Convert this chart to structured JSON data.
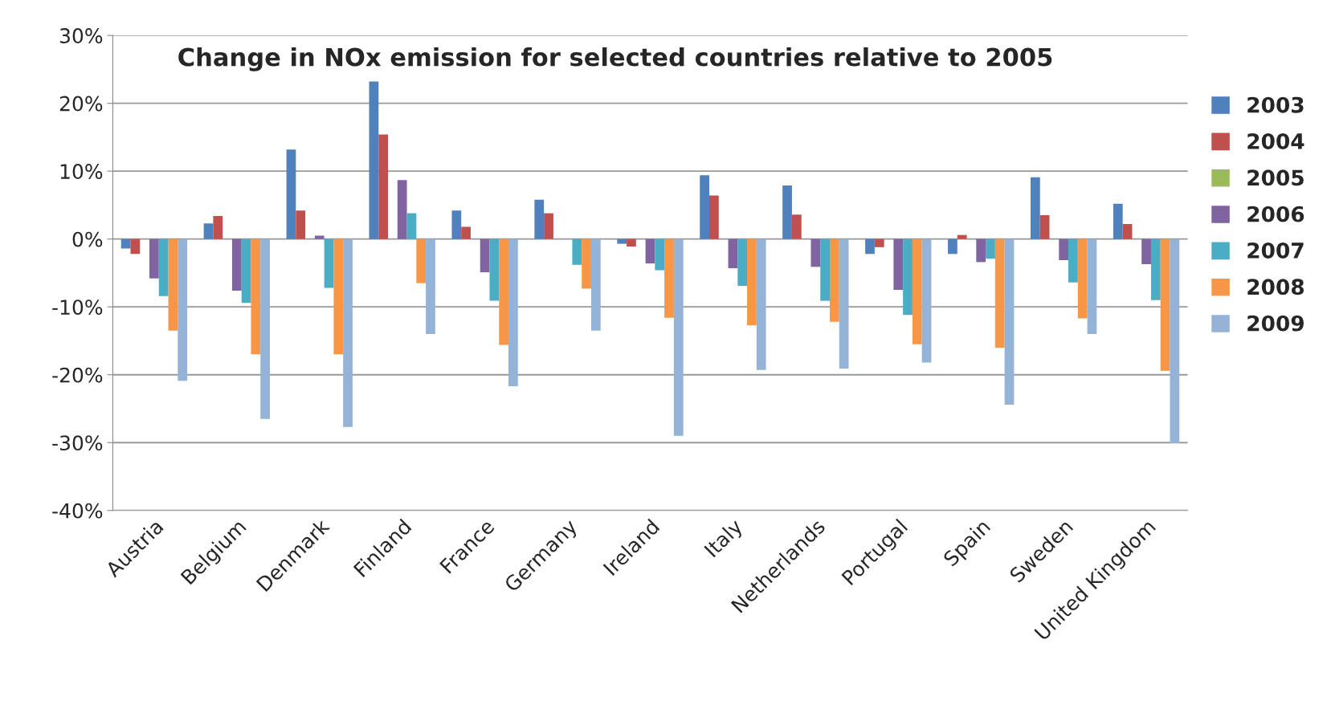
{
  "chart_data": {
    "type": "bar",
    "title": "Change in NOx emission for selected countries relative to 2005",
    "categories": [
      "Austria",
      "Belgium",
      "Denmark",
      "Finland",
      "France",
      "Germany",
      "Ireland",
      "Italy",
      "Netherlands",
      "Portugal",
      "Spain",
      "Sweden",
      "United Kingdom"
    ],
    "series": [
      {
        "name": "2003",
        "color": "#4f81bd",
        "values": [
          -1.4,
          2.3,
          13.2,
          23.2,
          4.2,
          5.8,
          -0.7,
          9.4,
          7.9,
          -2.2,
          -2.2,
          9.1,
          5.2
        ]
      },
      {
        "name": "2004",
        "color": "#c0504d",
        "values": [
          -2.2,
          3.4,
          4.2,
          15.4,
          1.8,
          3.8,
          -1.1,
          6.4,
          3.6,
          -1.2,
          0.6,
          3.5,
          2.2
        ]
      },
      {
        "name": "2005",
        "color": "#9bbb59",
        "values": [
          0,
          0,
          0,
          0,
          0,
          0,
          0,
          0,
          0,
          0,
          0,
          0,
          0
        ]
      },
      {
        "name": "2006",
        "color": "#8064a2",
        "values": [
          -5.8,
          -7.6,
          0.5,
          8.7,
          -4.9,
          0,
          -3.6,
          -4.3,
          -4.1,
          -7.5,
          -3.4,
          -3.1,
          -3.7
        ]
      },
      {
        "name": "2007",
        "color": "#4bacc6",
        "values": [
          -8.4,
          -9.4,
          -7.2,
          3.8,
          -9.1,
          -3.8,
          -4.6,
          -6.9,
          -9.1,
          -11.2,
          -2.9,
          -6.4,
          -9.0
        ]
      },
      {
        "name": "2008",
        "color": "#f79646",
        "values": [
          -13.5,
          -17.0,
          -17.0,
          -6.5,
          -15.6,
          -7.3,
          -11.6,
          -12.7,
          -12.2,
          -15.5,
          -16.0,
          -11.7,
          -19.4
        ]
      },
      {
        "name": "2009",
        "color": "#95b3d7",
        "values": [
          -20.9,
          -26.5,
          -27.7,
          -14.0,
          -21.7,
          -13.5,
          -29.0,
          -19.3,
          -19.1,
          -18.2,
          -24.4,
          -14.0,
          -30.1
        ]
      }
    ],
    "ylim": [
      -40,
      30
    ],
    "yticks": [
      {
        "value": -40,
        "label": "-40%"
      },
      {
        "value": -30,
        "label": "-30%"
      },
      {
        "value": -20,
        "label": "-20%"
      },
      {
        "value": -10,
        "label": "-10%"
      },
      {
        "value": 0,
        "label": "0%"
      },
      {
        "value": 10,
        "label": "10%"
      },
      {
        "value": 20,
        "label": "20%"
      },
      {
        "value": 30,
        "label": "30%"
      }
    ],
    "grid": "y",
    "legend": "right"
  }
}
